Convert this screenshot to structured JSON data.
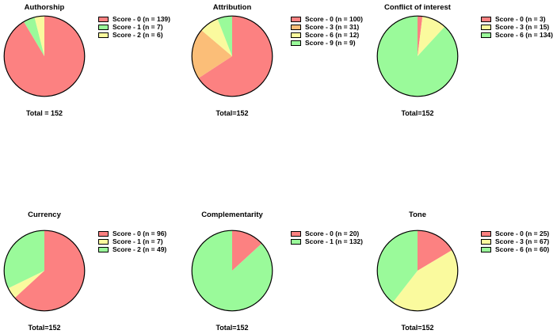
{
  "figure": {
    "background": "#ffffff",
    "outline_color": "#000000"
  },
  "palette": {
    "red": "#FC8181",
    "orange": "#FBBE78",
    "yellow": "#FAFA9E",
    "green": "#9AFA9A"
  },
  "chart_data": [
    {
      "type": "pie",
      "title": "Authorship",
      "total": 152,
      "total_label": "Total = 152",
      "legend_position": "right",
      "start_angle_deg": 0,
      "direction": "clockwise",
      "slices": [
        {
          "label": "Score - 0 (n = 139)",
          "value": 139,
          "color": "#FC8181"
        },
        {
          "label": "Score - 1 (n = 7)",
          "value": 7,
          "color": "#9AFA9A"
        },
        {
          "label": "Score - 2 (n = 6)",
          "value": 6,
          "color": "#FAFA9E"
        }
      ]
    },
    {
      "type": "pie",
      "title": "Attribution",
      "total": 152,
      "total_label": "Total=152",
      "legend_position": "right",
      "start_angle_deg": 0,
      "direction": "clockwise",
      "slices": [
        {
          "label": "Score - 0 (n = 100)",
          "value": 100,
          "color": "#FC8181"
        },
        {
          "label": "Score - 3 (n = 31)",
          "value": 31,
          "color": "#FBBE78"
        },
        {
          "label": "Score - 6 (n = 12)",
          "value": 12,
          "color": "#FAFA9E"
        },
        {
          "label": "Score - 9 (n = 9)",
          "value": 9,
          "color": "#9AFA9A"
        }
      ]
    },
    {
      "type": "pie",
      "title": "Conflict of interest",
      "total": 152,
      "total_label": "Total=152",
      "legend_position": "right",
      "start_angle_deg": 0,
      "direction": "clockwise",
      "slices": [
        {
          "label": "Score - 0 (n = 3)",
          "value": 3,
          "color": "#FC8181"
        },
        {
          "label": "Score - 3 (n = 15)",
          "value": 15,
          "color": "#FAFA9E"
        },
        {
          "label": "Score - 6 (n = 134)",
          "value": 134,
          "color": "#9AFA9A"
        }
      ]
    },
    {
      "type": "pie",
      "title": "Currency",
      "total": 152,
      "total_label": "Total=152",
      "legend_position": "right",
      "start_angle_deg": 0,
      "direction": "clockwise",
      "slices": [
        {
          "label": "Score - 0 (n = 96)",
          "value": 96,
          "color": "#FC8181"
        },
        {
          "label": "Score - 1 (n = 7)",
          "value": 7,
          "color": "#FAFA9E"
        },
        {
          "label": "Score - 2 (n = 49)",
          "value": 49,
          "color": "#9AFA9A"
        }
      ]
    },
    {
      "type": "pie",
      "title": "Complementarity",
      "total": 152,
      "total_label": "Total=152",
      "legend_position": "right",
      "start_angle_deg": 0,
      "direction": "clockwise",
      "slices": [
        {
          "label": "Score - 0 (n = 20)",
          "value": 20,
          "color": "#FC8181"
        },
        {
          "label": "Score - 1 (n = 132)",
          "value": 132,
          "color": "#9AFA9A"
        }
      ]
    },
    {
      "type": "pie",
      "title": "Tone",
      "total": 152,
      "total_label": "Total=152",
      "legend_position": "right",
      "start_angle_deg": 0,
      "direction": "clockwise",
      "slices": [
        {
          "label": "Score - 0 (n = 25)",
          "value": 25,
          "color": "#FC8181"
        },
        {
          "label": "Score - 3 (n = 67)",
          "value": 67,
          "color": "#FAFA9E"
        },
        {
          "label": "Score - 6 (n = 60)",
          "value": 60,
          "color": "#9AFA9A"
        }
      ]
    }
  ]
}
